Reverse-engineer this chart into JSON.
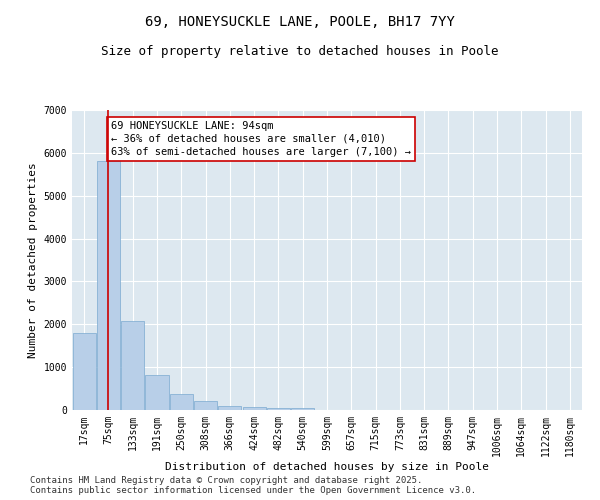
{
  "title": "69, HONEYSUCKLE LANE, POOLE, BH17 7YY",
  "subtitle": "Size of property relative to detached houses in Poole",
  "xlabel": "Distribution of detached houses by size in Poole",
  "ylabel": "Number of detached properties",
  "bar_color": "#b8cfe8",
  "bar_edge_color": "#7aaad0",
  "background_color": "#dde8f0",
  "grid_color": "#ffffff",
  "fig_bg_color": "#ffffff",
  "categories": [
    "17sqm",
    "75sqm",
    "133sqm",
    "191sqm",
    "250sqm",
    "308sqm",
    "366sqm",
    "424sqm",
    "482sqm",
    "540sqm",
    "599sqm",
    "657sqm",
    "715sqm",
    "773sqm",
    "831sqm",
    "889sqm",
    "947sqm",
    "1006sqm",
    "1064sqm",
    "1122sqm",
    "1180sqm"
  ],
  "values": [
    1800,
    5800,
    2080,
    820,
    370,
    210,
    100,
    65,
    55,
    40,
    0,
    0,
    0,
    0,
    0,
    0,
    0,
    0,
    0,
    0,
    0
  ],
  "ylim": [
    0,
    7000
  ],
  "yticks": [
    0,
    1000,
    2000,
    3000,
    4000,
    5000,
    6000,
    7000
  ],
  "vline_x": 1,
  "vline_color": "#cc0000",
  "annotation_text": "69 HONEYSUCKLE LANE: 94sqm\n← 36% of detached houses are smaller (4,010)\n63% of semi-detached houses are larger (7,100) →",
  "annotation_box_color": "#cc0000",
  "annotation_bg": "#ffffff",
  "footer": "Contains HM Land Registry data © Crown copyright and database right 2025.\nContains public sector information licensed under the Open Government Licence v3.0.",
  "footer_fontsize": 6.5,
  "title_fontsize": 10,
  "subtitle_fontsize": 9,
  "label_fontsize": 8,
  "tick_fontsize": 7,
  "annot_fontsize": 7.5
}
